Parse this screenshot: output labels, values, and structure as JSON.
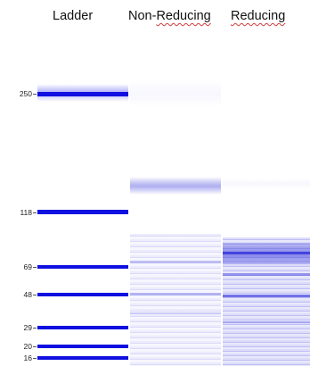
{
  "lanes": {
    "ladder": "Ladder",
    "non_reducing": "Non-Reducing",
    "reducing": "Reducing"
  },
  "markers": [
    "250",
    "118",
    "69",
    "48",
    "29",
    "20",
    "16"
  ],
  "colors": {
    "band": "#1010e0",
    "smear": "#8c8cf0",
    "text": "#111111",
    "misspell_underline": "#d33c3c"
  }
}
